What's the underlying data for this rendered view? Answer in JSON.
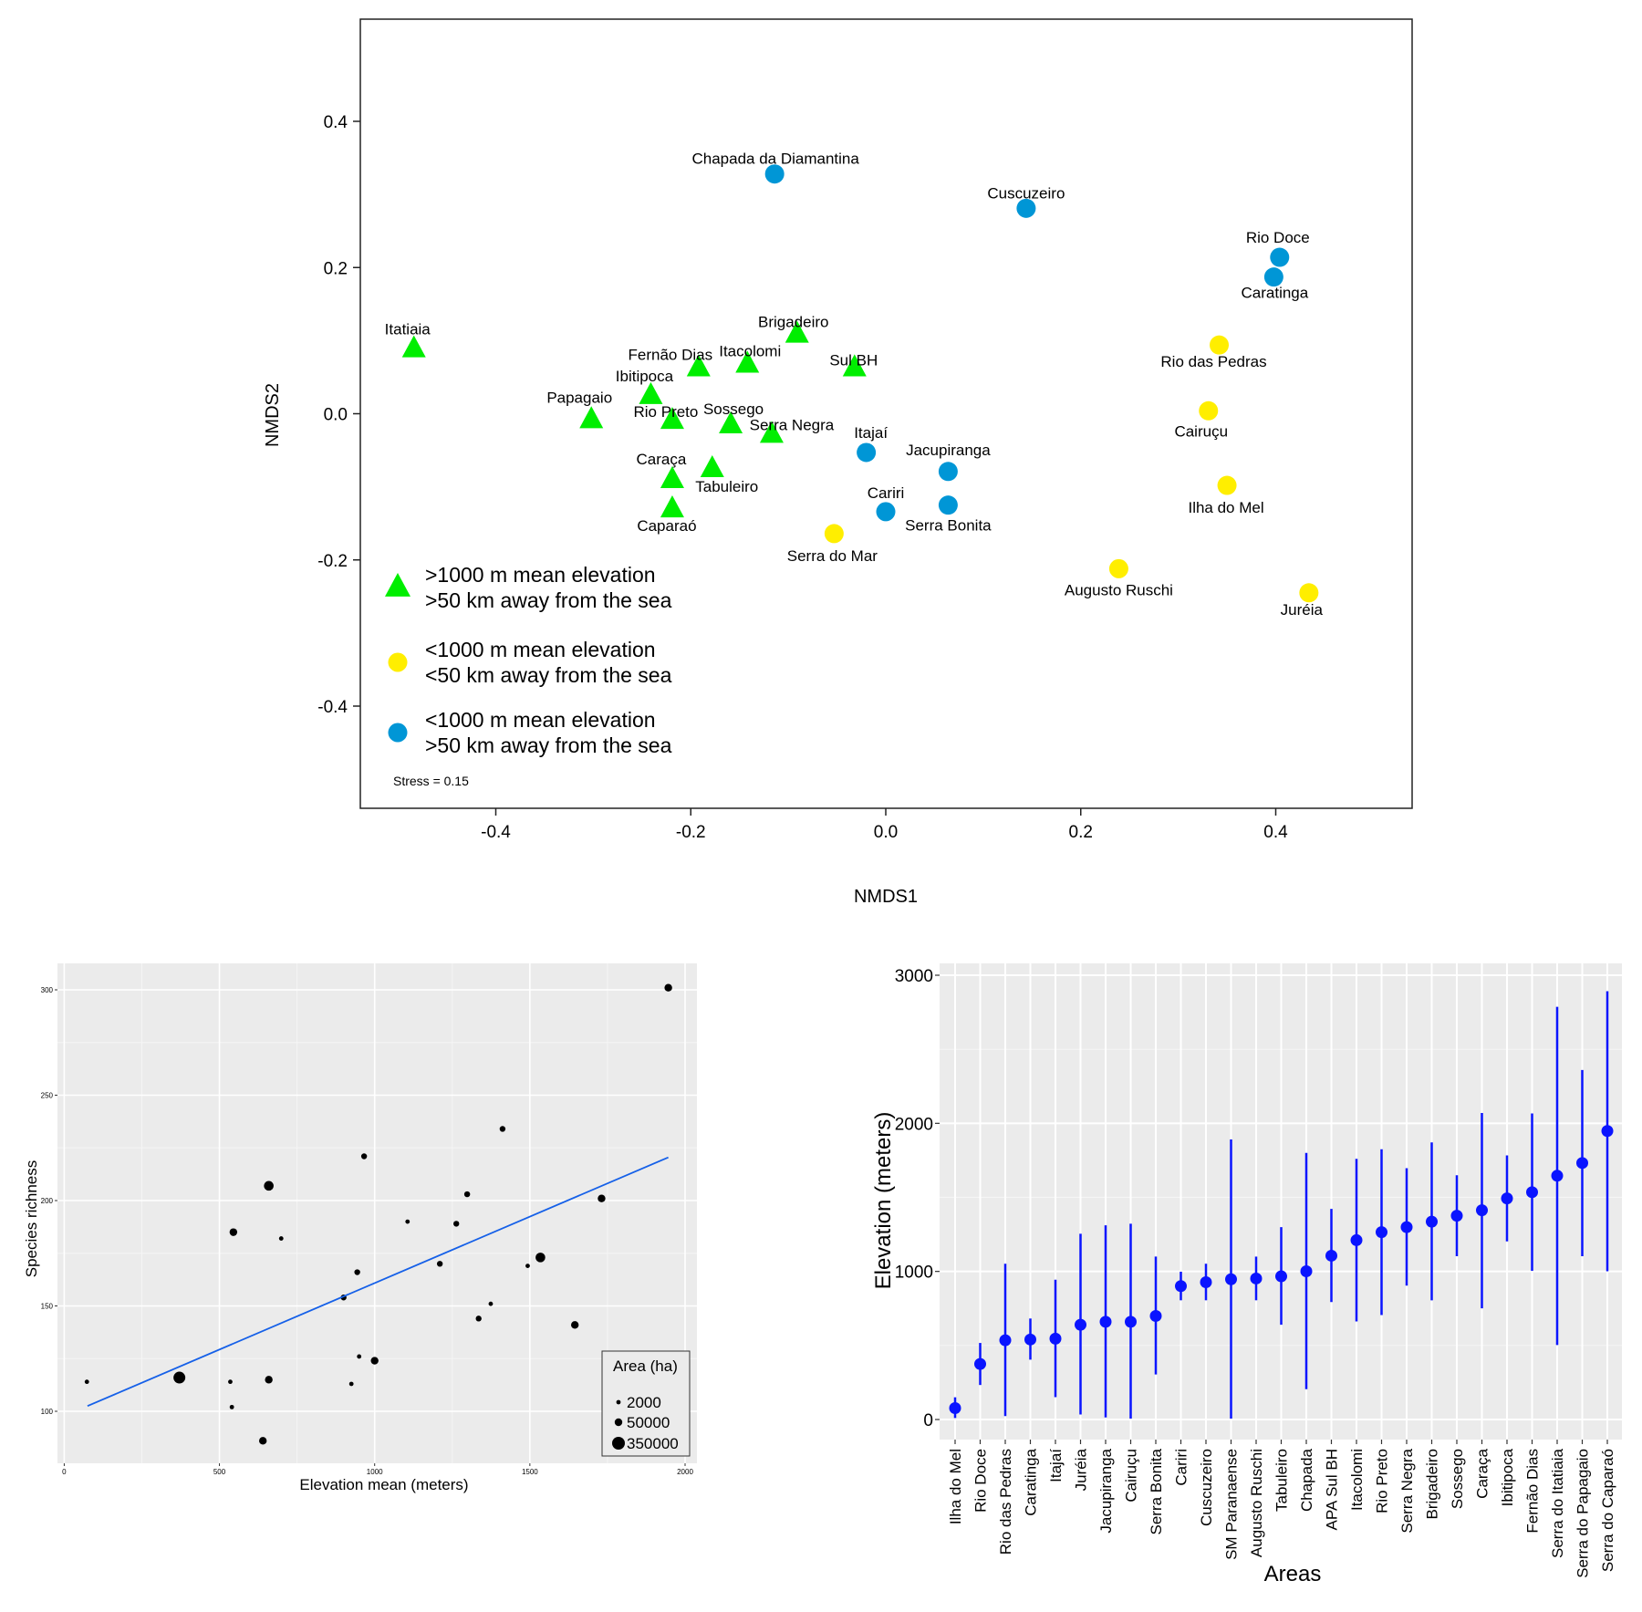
{
  "chart_data": [
    {
      "type": "scatter",
      "title": "",
      "xlabel": "NMDS1",
      "ylabel": "NMDS2",
      "xlim": [
        -0.54,
        0.54
      ],
      "ylim": [
        -0.54,
        0.54
      ],
      "xticks": [
        -0.4,
        -0.2,
        0.0,
        0.2,
        0.4
      ],
      "xtick_labels": [
        "-0.4",
        "-0.2",
        "0.0",
        "0.2",
        "0.4"
      ],
      "yticks": [
        0.4,
        0.2,
        0.0,
        -0.2,
        -0.4
      ],
      "ytick_labels": [
        "0.4",
        "0.2",
        "0.0",
        "-0.2",
        "-0.4"
      ],
      "grid": false,
      "legend_position": "bottom-left",
      "annotation": "Stress = 0.15",
      "groups": [
        {
          "id": "high",
          "shape": "triangle",
          "color": "#00ee00",
          "line1": ">1000 m mean elevation",
          "line2": ">50 km away from the sea"
        },
        {
          "id": "coast",
          "shape": "circle",
          "color": "#ffee00",
          "line1": "<1000 m mean elevation",
          "line2": "<50 km away from the sea"
        },
        {
          "id": "inland",
          "shape": "circle",
          "color": "#0096d6",
          "line1": "<1000 m mean elevation",
          "line2": ">50 km away from the sea"
        }
      ],
      "points": [
        {
          "label": "Chapada da Diamantina",
          "x": -0.114,
          "y": 0.328,
          "group": "inland"
        },
        {
          "label": "Cuscuzeiro",
          "x": 0.144,
          "y": 0.281,
          "group": "inland"
        },
        {
          "label": "Rio Doce",
          "x": 0.404,
          "y": 0.214,
          "group": "inland"
        },
        {
          "label": "Caratinga",
          "x": 0.398,
          "y": 0.187,
          "group": "inland"
        },
        {
          "label": "Rio das Pedras",
          "x": 0.342,
          "y": 0.094,
          "group": "coast"
        },
        {
          "label": "Cairuçu",
          "x": 0.331,
          "y": 0.004,
          "group": "coast"
        },
        {
          "label": "Ilha do Mel",
          "x": 0.35,
          "y": -0.098,
          "group": "coast"
        },
        {
          "label": "Augusto Ruschi",
          "x": 0.239,
          "y": -0.212,
          "group": "coast"
        },
        {
          "label": "Juréia",
          "x": 0.434,
          "y": -0.245,
          "group": "coast"
        },
        {
          "label": "Serra do Mar",
          "x": -0.053,
          "y": -0.164,
          "group": "coast"
        },
        {
          "label": "Itajaí",
          "x": -0.02,
          "y": -0.053,
          "group": "inland"
        },
        {
          "label": "Jacupiranga",
          "x": 0.064,
          "y": -0.079,
          "group": "inland"
        },
        {
          "label": "Cariri",
          "x": 0.0,
          "y": -0.134,
          "group": "inland"
        },
        {
          "label": "Serra Bonita",
          "x": 0.064,
          "y": -0.125,
          "group": "inland"
        },
        {
          "label": "Itatiaia",
          "x": -0.484,
          "y": 0.091,
          "group": "high"
        },
        {
          "label": "Brigadeiro",
          "x": -0.091,
          "y": 0.111,
          "group": "high"
        },
        {
          "label": "Fernão Dias",
          "x": -0.192,
          "y": 0.065,
          "group": "high"
        },
        {
          "label": "Itacolomi",
          "x": -0.142,
          "y": 0.07,
          "group": "high"
        },
        {
          "label": "Sul BH",
          "x": -0.032,
          "y": 0.065,
          "group": "high"
        },
        {
          "label": "Ibitipoca",
          "x": -0.241,
          "y": 0.027,
          "group": "high"
        },
        {
          "label": "Papagaio",
          "x": -0.302,
          "y": -0.006,
          "group": "high"
        },
        {
          "label": "Rio Preto",
          "x": -0.219,
          "y": -0.007,
          "group": "high"
        },
        {
          "label": "Sossego",
          "x": -0.159,
          "y": -0.013,
          "group": "high"
        },
        {
          "label": "Serra Negra",
          "x": -0.117,
          "y": -0.026,
          "group": "high"
        },
        {
          "label": "Caraça",
          "x": -0.219,
          "y": -0.088,
          "group": "high"
        },
        {
          "label": "Tabuleiro",
          "x": -0.178,
          "y": -0.073,
          "group": "high"
        },
        {
          "label": "Caparaó",
          "x": -0.219,
          "y": -0.128,
          "group": "high"
        }
      ]
    },
    {
      "type": "scatter",
      "title": "",
      "xlabel": "Elevation mean (meters)",
      "ylabel": "Species richness",
      "xlim": [
        -30,
        2040
      ],
      "ylim": [
        78,
        312
      ],
      "xticks": [
        0,
        500,
        1000,
        1500,
        2000
      ],
      "xtick_labels": [
        "0",
        "500",
        "1000",
        "1500",
        "2000"
      ],
      "yticks": [
        100,
        150,
        200,
        250,
        300
      ],
      "ytick_labels": [
        "100",
        "150",
        "200",
        "250",
        "300"
      ],
      "grid": true,
      "legend_position": "bottom-right",
      "legend_title": "Area (ha)",
      "size_legend": [
        {
          "label": "2000",
          "value": 2000
        },
        {
          "label": "50000",
          "value": 50000
        },
        {
          "label": "350000",
          "value": 350000
        }
      ],
      "trend_line": {
        "x": [
          75,
          1946
        ],
        "y": [
          102.5,
          220.5
        ],
        "color": "#1560e8"
      },
      "points": [
        {
          "x": 73,
          "y": 114,
          "area": 2000
        },
        {
          "x": 371,
          "y": 116,
          "area": 350000
        },
        {
          "x": 535,
          "y": 114,
          "area": 2000
        },
        {
          "x": 540,
          "y": 102,
          "area": 2000
        },
        {
          "x": 545,
          "y": 185,
          "area": 50000
        },
        {
          "x": 659,
          "y": 207,
          "area": 150000
        },
        {
          "x": 640,
          "y": 86,
          "area": 50000
        },
        {
          "x": 659,
          "y": 115,
          "area": 50000
        },
        {
          "x": 699,
          "y": 182,
          "area": 2000
        },
        {
          "x": 900,
          "y": 154,
          "area": 20000
        },
        {
          "x": 925,
          "y": 113,
          "area": 2000
        },
        {
          "x": 944,
          "y": 166,
          "area": 20000
        },
        {
          "x": 950,
          "y": 126,
          "area": 2000
        },
        {
          "x": 966,
          "y": 221,
          "area": 20000
        },
        {
          "x": 1000,
          "y": 124,
          "area": 50000
        },
        {
          "x": 1106,
          "y": 190,
          "area": 2000
        },
        {
          "x": 1210,
          "y": 170,
          "area": 20000
        },
        {
          "x": 1263,
          "y": 189,
          "area": 20000
        },
        {
          "x": 1298,
          "y": 203,
          "area": 20000
        },
        {
          "x": 1335,
          "y": 144,
          "area": 20000
        },
        {
          "x": 1374,
          "y": 151,
          "area": 2000
        },
        {
          "x": 1412,
          "y": 234,
          "area": 20000
        },
        {
          "x": 1493,
          "y": 169,
          "area": 2000
        },
        {
          "x": 1534,
          "y": 173,
          "area": 150000
        },
        {
          "x": 1645,
          "y": 141,
          "area": 50000
        },
        {
          "x": 1731,
          "y": 201,
          "area": 50000
        },
        {
          "x": 1946,
          "y": 301,
          "area": 50000
        }
      ]
    },
    {
      "type": "errorbar",
      "title": "",
      "xlabel": "Areas",
      "ylabel": "Elevation (meters)",
      "ylim": [
        -150,
        3060
      ],
      "yticks": [
        0,
        1000,
        2000,
        3000
      ],
      "ytick_labels": [
        "0",
        "1000",
        "2000",
        "3000"
      ],
      "grid": true,
      "color": "#0a14ff",
      "categories": [
        "Ilha do Mel",
        "Rio Doce",
        "Rio das Pedras",
        "Caratinga",
        "Itajaí",
        "Juréia",
        "Jacupiranga",
        "Cairuçu",
        "Serra Bonita",
        "Cariri",
        "Cuscuzeiro",
        "SM Paranaense",
        "Augusto Ruschi",
        "Tabuleiro",
        "Chapada",
        "APA Sul BH",
        "Itacolomi",
        "Rio Preto",
        "Serra Negra",
        "Brigadeiro",
        "Sossego",
        "Caraça",
        "Ibitipoca",
        "Fernão Dias",
        "Serra do Itatiaia",
        "Serra do Papagaio",
        "Serra do Caparaó"
      ],
      "mean": [
        77,
        375,
        535,
        540,
        546,
        640,
        660,
        660,
        699,
        901,
        927,
        947,
        952,
        967,
        1001,
        1106,
        1211,
        1265,
        1299,
        1336,
        1376,
        1413,
        1493,
        1535,
        1646,
        1732,
        1948
      ],
      "min": [
        10,
        233,
        23,
        404,
        151,
        34,
        14,
        6,
        304,
        805,
        805,
        6,
        805,
        640,
        205,
        793,
        662,
        705,
        904,
        805,
        1103,
        751,
        1203,
        1004,
        503,
        1103,
        1001
      ],
      "max": [
        150,
        517,
        1052,
        682,
        944,
        1254,
        1311,
        1322,
        1100,
        998,
        1052,
        1891,
        1100,
        1299,
        1800,
        1422,
        1760,
        1825,
        1697,
        1871,
        1649,
        2070,
        1783,
        2067,
        2787,
        2360,
        2892
      ]
    }
  ]
}
